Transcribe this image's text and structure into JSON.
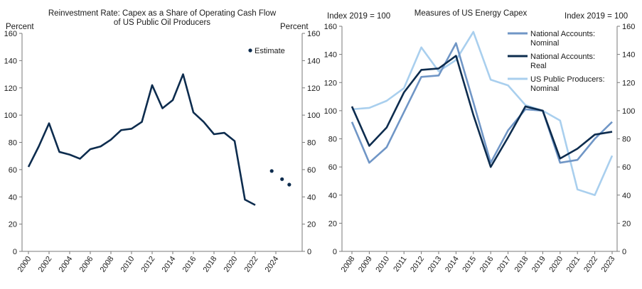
{
  "chart_data": [
    {
      "type": "line",
      "title": "Reinvestment Rate: Capex as a Share of Operating Cash Flow of US Public Oil Producers",
      "title_lines": [
        "Reinvestment Rate: Capex as a Share of Operating Cash Flow",
        "of US Public Oil Producers"
      ],
      "ylabel_left": "Percent",
      "ylabel_right": "Percent",
      "ylim": [
        0,
        160
      ],
      "yticks": [
        0,
        20,
        40,
        60,
        80,
        100,
        120,
        140,
        160
      ],
      "xlim": [
        2000,
        2025.3
      ],
      "xticks": [
        "2000",
        "2002",
        "2004",
        "2006",
        "2008",
        "2010",
        "2012",
        "2014",
        "2016",
        "2018",
        "2020",
        "2022",
        "2024"
      ],
      "series": [
        {
          "name": "Reinvestment Rate",
          "color": "#0d2c4e",
          "x": [
            2000,
            2001,
            2002,
            2003,
            2004,
            2005,
            2006,
            2007,
            2008,
            2009,
            2010,
            2011,
            2012,
            2013,
            2014,
            2015,
            2016,
            2017,
            2018,
            2019,
            2020,
            2021,
            2022
          ],
          "y": [
            62,
            77,
            94,
            73,
            71,
            68,
            75,
            77,
            82,
            89,
            90,
            95,
            122,
            105,
            111,
            130,
            102,
            95,
            86,
            87,
            81,
            38,
            34
          ]
        }
      ],
      "estimate": {
        "name": "Estimate",
        "color": "#0d2c4e",
        "x": [
          2023.6,
          2024.6,
          2025.3
        ],
        "y": [
          59,
          53,
          49
        ]
      },
      "legend_label": "Estimate"
    },
    {
      "type": "line",
      "title": "Measures of US Energy Capex",
      "ylabel_left": "Index 2019 = 100",
      "ylabel_right": "Index 2019 = 100",
      "ylim": [
        0,
        160
      ],
      "yticks": [
        0,
        20,
        40,
        60,
        80,
        100,
        120,
        140,
        160
      ],
      "categories": [
        "2008",
        "2009",
        "2010",
        "2011",
        "2012",
        "2013",
        "2014",
        "2015",
        "2016",
        "2017",
        "2018",
        "2019",
        "2020",
        "2021",
        "2022",
        "2023"
      ],
      "series": [
        {
          "name": "National Accounts: Nominal",
          "legend_lines": [
            "National Accounts:",
            "Nominal"
          ],
          "color": "#7096c6",
          "values": [
            92,
            63,
            74,
            99,
            124,
            125,
            148,
            106,
            63,
            86,
            101,
            100,
            63,
            65,
            80,
            92
          ]
        },
        {
          "name": "National Accounts: Real",
          "legend_lines": [
            "National Accounts:",
            "Real"
          ],
          "color": "#0d2c4e",
          "values": [
            103,
            75,
            88,
            113,
            129,
            130,
            139,
            97,
            60,
            81,
            103,
            100,
            66,
            73,
            83,
            85
          ]
        },
        {
          "name": "US Public Producers: Nominal",
          "legend_lines": [
            "US Public Producers:",
            "Nominal"
          ],
          "color": "#a9cfee",
          "values": [
            101,
            102,
            107,
            116,
            145,
            128,
            136,
            156,
            122,
            118,
            104,
            100,
            93,
            44,
            40,
            68
          ],
          "start_index": 0
        }
      ]
    }
  ]
}
